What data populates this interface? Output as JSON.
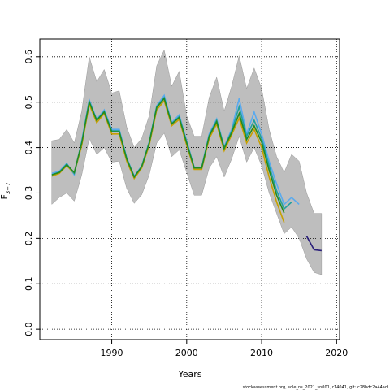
{
  "chart_data": {
    "type": "line",
    "x_label": "Years",
    "y_label": "F",
    "y_label_sub": "3−7",
    "footnote": "stockassessment.org,  sole_ns_2021_sn001,  r14041,  git: c28bdc2a44ad",
    "xlim": [
      1980.4,
      2020.4
    ],
    "ylim": [
      -0.023,
      0.639
    ],
    "xticks": [
      1990,
      2000,
      2010,
      2020
    ],
    "yticks": [
      {
        "value": 0,
        "label": "0.0"
      },
      0.1,
      0.2,
      0.3,
      0.4,
      0.5,
      0.6
    ],
    "grid": true,
    "band": {
      "color": "#bebebe",
      "x": [
        1982,
        1983,
        1984,
        1985,
        1986,
        1987,
        1988,
        1989,
        1990,
        1991,
        1992,
        1993,
        1994,
        1995,
        1996,
        1997,
        1998,
        1999,
        2000,
        2001,
        2002,
        2003,
        2004,
        2005,
        2006,
        2007,
        2008,
        2009,
        2010,
        2011,
        2012,
        2013,
        2014,
        2015,
        2016,
        2017,
        2018
      ],
      "upper": [
        0.415,
        0.418,
        0.44,
        0.41,
        0.48,
        0.6,
        0.545,
        0.572,
        0.52,
        0.525,
        0.445,
        0.4,
        0.42,
        0.47,
        0.58,
        0.615,
        0.535,
        0.568,
        0.47,
        0.425,
        0.425,
        0.51,
        0.555,
        0.48,
        0.535,
        0.602,
        0.53,
        0.575,
        0.53,
        0.44,
        0.38,
        0.345,
        0.385,
        0.37,
        0.3,
        0.255,
        0.255
      ],
      "lower": [
        0.275,
        0.29,
        0.3,
        0.282,
        0.34,
        0.42,
        0.385,
        0.4,
        0.368,
        0.37,
        0.31,
        0.277,
        0.296,
        0.34,
        0.41,
        0.432,
        0.38,
        0.395,
        0.345,
        0.295,
        0.295,
        0.355,
        0.38,
        0.335,
        0.375,
        0.425,
        0.368,
        0.4,
        0.36,
        0.3,
        0.255,
        0.21,
        0.225,
        0.2,
        0.155,
        0.125,
        0.12
      ]
    },
    "series": [
      {
        "color": "#5aaaee",
        "x": [
          1982,
          1983,
          1984,
          1985,
          1986,
          1987,
          1988,
          1989,
          1990,
          1991,
          1992,
          1993,
          1994,
          1995,
          1996,
          1997,
          1998,
          1999,
          2000,
          2001,
          2002,
          2003,
          2004,
          2005,
          2006,
          2007,
          2008,
          2009,
          2010,
          2011,
          2012,
          2013,
          2014,
          2015
        ],
        "values": [
          0.343,
          0.348,
          0.365,
          0.34,
          0.415,
          0.505,
          0.462,
          0.483,
          0.44,
          0.44,
          0.378,
          0.337,
          0.36,
          0.413,
          0.492,
          0.515,
          0.455,
          0.472,
          0.415,
          0.357,
          0.357,
          0.43,
          0.463,
          0.402,
          0.44,
          0.508,
          0.43,
          0.478,
          0.43,
          0.37,
          0.32,
          0.275,
          0.29,
          0.275
        ]
      },
      {
        "color": "#c8a000",
        "x": [
          1982,
          1983,
          1984,
          1985,
          1986,
          1987,
          1988,
          1989,
          1990,
          1991,
          1992,
          1993,
          1994,
          1995,
          1996,
          1997,
          1998,
          1999,
          2000,
          2001,
          2002,
          2003,
          2004,
          2005,
          2006,
          2007,
          2008,
          2009,
          2010,
          2011,
          2012,
          2013
        ],
        "values": [
          0.337,
          0.343,
          0.36,
          0.343,
          0.405,
          0.495,
          0.455,
          0.475,
          0.43,
          0.43,
          0.37,
          0.332,
          0.355,
          0.405,
          0.483,
          0.503,
          0.448,
          0.462,
          0.405,
          0.352,
          0.352,
          0.42,
          0.452,
          0.393,
          0.428,
          0.465,
          0.41,
          0.44,
          0.4,
          0.335,
          0.28,
          0.235
        ]
      },
      {
        "color": "#20a0a0",
        "x": [
          1982,
          1983,
          1984,
          1985,
          1986,
          1987,
          1988,
          1989,
          1990,
          1991,
          1992,
          1993,
          1994,
          1995,
          1996,
          1997,
          1998,
          1999,
          2000,
          2001,
          2002,
          2003,
          2004,
          2005,
          2006,
          2007,
          2008,
          2009,
          2010,
          2011,
          2012,
          2013,
          2014
        ],
        "values": [
          0.34,
          0.346,
          0.364,
          0.343,
          0.412,
          0.502,
          0.46,
          0.48,
          0.437,
          0.437,
          0.376,
          0.336,
          0.358,
          0.411,
          0.49,
          0.51,
          0.453,
          0.468,
          0.412,
          0.356,
          0.356,
          0.427,
          0.46,
          0.4,
          0.436,
          0.49,
          0.425,
          0.46,
          0.42,
          0.36,
          0.305,
          0.265,
          0.28
        ]
      },
      {
        "color": "#228b22",
        "x": [
          1982,
          1983,
          1984,
          1985,
          1986,
          1987,
          1988,
          1989,
          1990,
          1991,
          1992,
          1993,
          1994,
          1995,
          1996,
          1997,
          1998,
          1999,
          2000,
          2001,
          2002,
          2003,
          2004,
          2005,
          2006,
          2007,
          2008,
          2009,
          2010,
          2011,
          2012,
          2013
        ],
        "values": [
          0.34,
          0.345,
          0.362,
          0.345,
          0.41,
          0.5,
          0.46,
          0.478,
          0.435,
          0.435,
          0.375,
          0.335,
          0.358,
          0.41,
          0.488,
          0.508,
          0.452,
          0.466,
          0.41,
          0.355,
          0.355,
          0.425,
          0.457,
          0.398,
          0.433,
          0.475,
          0.418,
          0.448,
          0.412,
          0.35,
          0.295,
          0.256
        ]
      },
      {
        "color": "#2a1f7a",
        "x": [
          2016,
          2017,
          2018
        ],
        "values": [
          0.205,
          0.175,
          0.173
        ]
      }
    ]
  }
}
